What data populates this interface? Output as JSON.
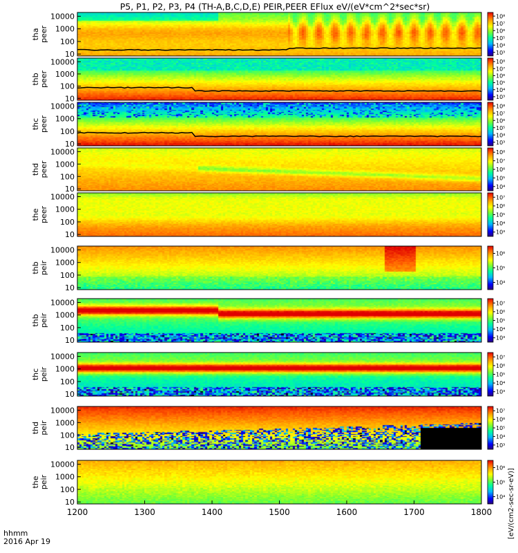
{
  "chart_data": {
    "type": "heatmap",
    "title": "P5, P1, P2, P3, P4 (TH-A,B,C,D,E) PEIR,PEER EFlux eV/(eV*cm^2*sec*sr)",
    "x_axis": {
      "label_line1": "hhmm",
      "label_line2": "2016 Apr 19",
      "range": [
        1200,
        1800
      ],
      "ticks": [
        "1200",
        "1300",
        "1400",
        "1500",
        "1600",
        "1700",
        "1800"
      ]
    },
    "y_axis": {
      "scale": "log",
      "range": [
        7,
        20000
      ],
      "ticks": [
        {
          "value": 10,
          "label": "10"
        },
        {
          "value": 100,
          "label": "100"
        },
        {
          "value": 1000,
          "label": "1000"
        },
        {
          "value": 10000,
          "label": "10000"
        }
      ]
    },
    "colorbar": {
      "scale": "log",
      "colors": [
        "#2a007a",
        "#0000ff",
        "#00b7ff",
        "#00ff9c",
        "#7bff30",
        "#ffff00",
        "#ffb000",
        "#ff5a00",
        "#e00000"
      ],
      "units_label": "[eV/(cm2-sec-sr-eV)]"
    },
    "panels": [
      {
        "id": "tha-peer",
        "label_line1": "tha",
        "label_line2": "peer",
        "species": "electron",
        "colorbar_ticks": [
          "10³",
          "10⁴",
          "10⁵",
          "10⁶",
          "10⁷",
          "10⁸"
        ],
        "has_overlay_line": true
      },
      {
        "id": "thb-peer",
        "label_line1": "thb",
        "label_line2": "peer",
        "species": "electron",
        "colorbar_ticks": [
          "10³",
          "10⁴",
          "10⁵",
          "10⁶",
          "10⁷",
          "10⁸"
        ],
        "has_overlay_line": true
      },
      {
        "id": "thc-peer",
        "label_line1": "thc",
        "label_line2": "peer",
        "species": "electron",
        "colorbar_ticks": [
          "10³",
          "10⁴",
          "10⁵",
          "10⁶",
          "10⁷",
          "10⁸"
        ],
        "has_overlay_line": true
      },
      {
        "id": "thd-peer",
        "label_line1": "thd",
        "label_line2": "peer",
        "species": "electron",
        "colorbar_ticks": [
          "10⁴",
          "10⁵",
          "10⁶",
          "10⁷",
          "10⁸"
        ],
        "has_overlay_line": false
      },
      {
        "id": "the-peer",
        "label_line1": "the",
        "label_line2": "peer",
        "species": "electron",
        "colorbar_ticks": [
          "10³",
          "10⁴",
          "10⁵",
          "10⁶",
          "10⁷"
        ],
        "has_overlay_line": false
      },
      {
        "id": "thb-peir",
        "label_line1": "thb",
        "label_line2": "peir",
        "species": "ion",
        "colorbar_ticks": [
          "10⁴",
          "10⁵",
          "10⁶"
        ],
        "has_overlay_line": false
      },
      {
        "id": "thb-peir-2",
        "label_line1": "thb",
        "label_line2": "peir",
        "species": "ion",
        "colorbar_ticks": [
          "10³",
          "10⁴",
          "10⁵",
          "10⁶",
          "10⁷"
        ],
        "has_overlay_line": false
      },
      {
        "id": "thc-peir",
        "label_line1": "thc",
        "label_line2": "peir",
        "species": "ion",
        "colorbar_ticks": [
          "10³",
          "10⁴",
          "10⁵",
          "10⁶",
          "10⁷"
        ],
        "has_overlay_line": false
      },
      {
        "id": "thd-peir",
        "label_line1": "thd",
        "label_line2": "peir",
        "species": "ion",
        "colorbar_ticks": [
          "10³",
          "10⁴",
          "10⁵",
          "10⁶",
          "10⁷"
        ],
        "has_overlay_line": false
      },
      {
        "id": "the-peir",
        "label_line1": "the",
        "label_line2": "peir",
        "species": "ion",
        "colorbar_ticks": [
          "10⁴",
          "10⁵",
          "10⁶"
        ],
        "has_overlay_line": false
      }
    ]
  }
}
